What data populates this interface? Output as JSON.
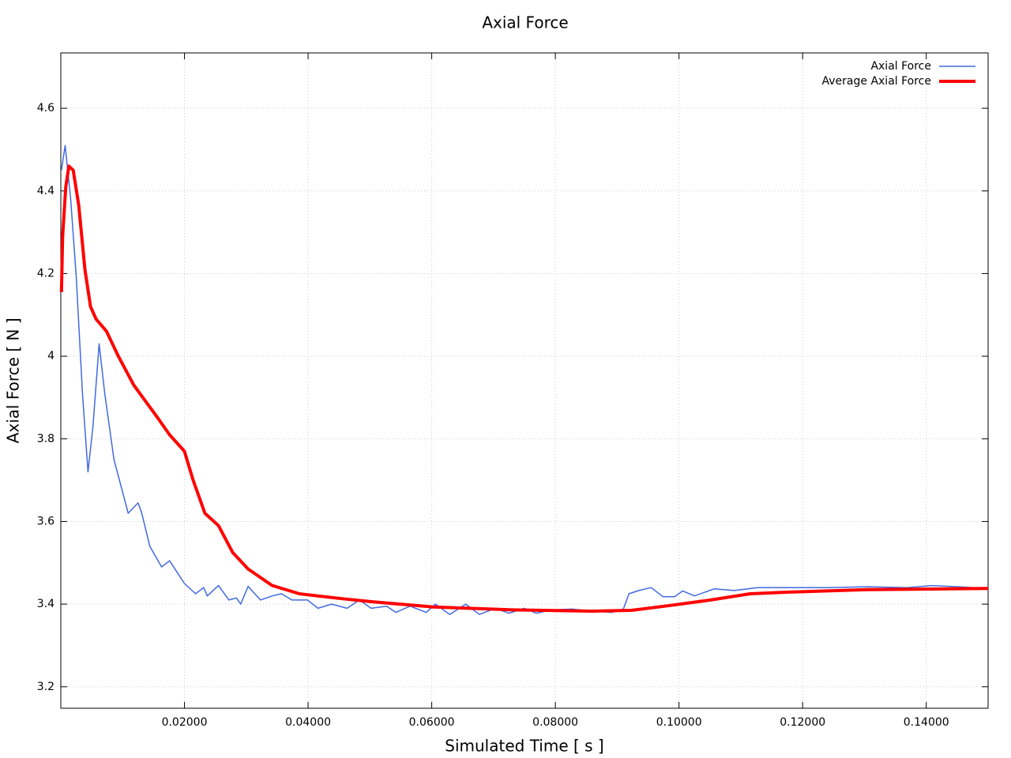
{
  "chart_data": {
    "type": "line",
    "title": "Axial Force",
    "xlabel": "Simulated Time [ s ]",
    "ylabel": "Axial Force [ N ]",
    "xlim": [
      0,
      0.15
    ],
    "ylim": [
      3.148,
      4.734
    ],
    "xticks": [
      {
        "value": 0.02,
        "label": "0.02000"
      },
      {
        "value": 0.04,
        "label": "0.04000"
      },
      {
        "value": 0.06,
        "label": "0.06000"
      },
      {
        "value": 0.08,
        "label": "0.08000"
      },
      {
        "value": 0.1,
        "label": "0.10000"
      },
      {
        "value": 0.12,
        "label": "0.12000"
      },
      {
        "value": 0.14,
        "label": "0.14000"
      }
    ],
    "yticks": [
      3.2,
      3.4,
      3.6,
      3.8,
      4,
      4.2,
      4.4,
      4.6
    ],
    "grid": true,
    "legend": "top-right",
    "series": [
      {
        "name": "Axial Force",
        "color": "#4169e1",
        "width": 1.5,
        "x": [
          0.0001,
          0.0007,
          0.0016,
          0.0025,
          0.0035,
          0.0044,
          0.0052,
          0.0062,
          0.0071,
          0.0086,
          0.0109,
          0.0125,
          0.0131,
          0.0144,
          0.0163,
          0.0176,
          0.02,
          0.0218,
          0.0231,
          0.0237,
          0.0255,
          0.0272,
          0.0284,
          0.0291,
          0.0303,
          0.0323,
          0.0342,
          0.0357,
          0.0374,
          0.0399,
          0.0416,
          0.0438,
          0.0463,
          0.0483,
          0.0502,
          0.0527,
          0.0542,
          0.0565,
          0.0591,
          0.0606,
          0.0629,
          0.0655,
          0.0677,
          0.0703,
          0.0725,
          0.075,
          0.0769,
          0.0795,
          0.0827,
          0.0859,
          0.0891,
          0.091,
          0.0919,
          0.0935,
          0.0955,
          0.0974,
          0.0993,
          0.1006,
          0.1025,
          0.1057,
          0.1089,
          0.1127,
          0.1178,
          0.1242,
          0.1305,
          0.1369,
          0.1408,
          0.1452,
          0.15
        ],
        "values": [
          4.45,
          4.51,
          4.38,
          4.19,
          3.91,
          3.72,
          3.83,
          4.03,
          3.91,
          3.75,
          3.62,
          3.645,
          3.62,
          3.54,
          3.49,
          3.505,
          3.45,
          3.425,
          3.44,
          3.42,
          3.445,
          3.41,
          3.415,
          3.4,
          3.443,
          3.41,
          3.42,
          3.425,
          3.41,
          3.41,
          3.39,
          3.4,
          3.39,
          3.41,
          3.39,
          3.395,
          3.38,
          3.395,
          3.38,
          3.4,
          3.375,
          3.4,
          3.375,
          3.39,
          3.378,
          3.39,
          3.378,
          3.386,
          3.388,
          3.383,
          3.38,
          3.388,
          3.425,
          3.433,
          3.44,
          3.418,
          3.418,
          3.432,
          3.42,
          3.437,
          3.433,
          3.44,
          3.44,
          3.44,
          3.442,
          3.44,
          3.445,
          3.442,
          3.438
        ]
      },
      {
        "name": "Average Axial Force",
        "color": "#ff0000",
        "width": 4,
        "x": [
          0.0001,
          0.0003,
          0.0008,
          0.0013,
          0.002,
          0.0029,
          0.0039,
          0.0048,
          0.0057,
          0.0074,
          0.0093,
          0.0118,
          0.0157,
          0.0176,
          0.02,
          0.0214,
          0.0233,
          0.0255,
          0.0278,
          0.0303,
          0.0342,
          0.0386,
          0.045,
          0.0502,
          0.0603,
          0.0731,
          0.0859,
          0.0923,
          0.0987,
          0.1051,
          0.1115,
          0.1178,
          0.1305,
          0.15
        ],
        "values": [
          4.155,
          4.29,
          4.41,
          4.46,
          4.45,
          4.365,
          4.21,
          4.12,
          4.09,
          4.06,
          4.0,
          3.93,
          3.85,
          3.81,
          3.77,
          3.7,
          3.62,
          3.59,
          3.525,
          3.485,
          3.445,
          3.425,
          3.414,
          3.406,
          3.393,
          3.386,
          3.383,
          3.385,
          3.397,
          3.41,
          3.425,
          3.429,
          3.435,
          3.438
        ]
      }
    ]
  }
}
